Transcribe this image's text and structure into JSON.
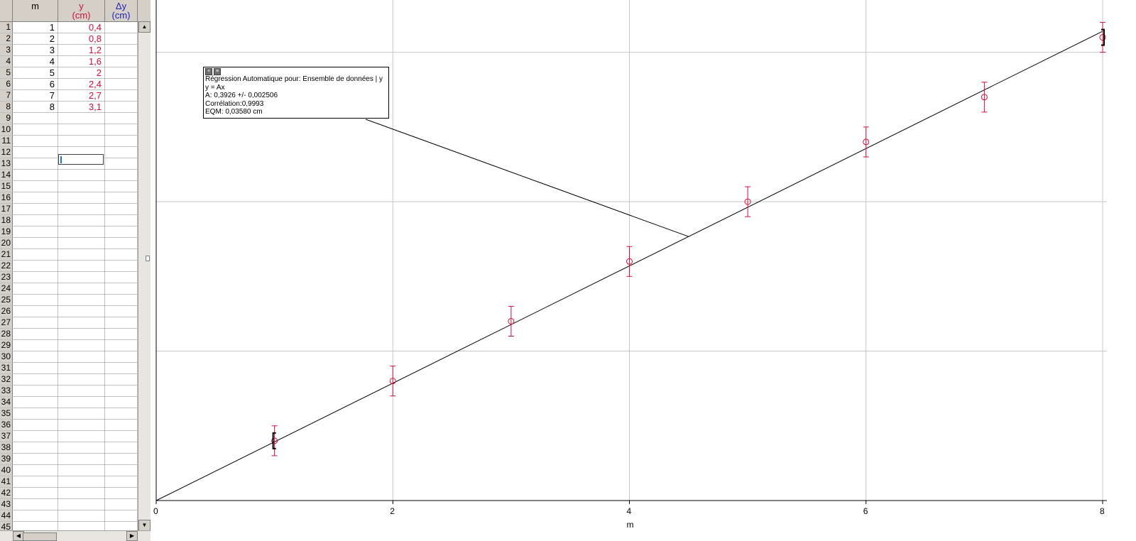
{
  "table": {
    "headers": {
      "m": {
        "name": "m",
        "unit": ""
      },
      "y": {
        "name": "y",
        "unit": "(cm)"
      },
      "dy": {
        "name": "Δy",
        "unit": "(cm)"
      }
    },
    "row_numbers": [
      "1",
      "2",
      "3",
      "4",
      "5",
      "6",
      "7",
      "8",
      "9",
      "10",
      "11",
      "12",
      "13",
      "14",
      "15",
      "16",
      "17",
      "18",
      "19",
      "20",
      "21",
      "22",
      "23",
      "24",
      "25",
      "26",
      "27",
      "28",
      "29",
      "30",
      "31",
      "32",
      "33",
      "34",
      "35",
      "36",
      "37",
      "38",
      "39",
      "40",
      "41",
      "42",
      "43",
      "44",
      "45"
    ],
    "rows": [
      {
        "m": "1",
        "y": "0,4"
      },
      {
        "m": "2",
        "y": "0,8"
      },
      {
        "m": "3",
        "y": "1,2"
      },
      {
        "m": "4",
        "y": "1,6"
      },
      {
        "m": "5",
        "y": "2"
      },
      {
        "m": "6",
        "y": "2,4"
      },
      {
        "m": "7",
        "y": "2,7"
      },
      {
        "m": "8",
        "y": "3,1"
      }
    ],
    "colors": {
      "m": "#000000",
      "y": "#d0103a",
      "dy": "#2020c0"
    }
  },
  "regression": {
    "title": "Régression Automatique pour: Ensemble de données | y",
    "model": "y = Ax",
    "param": "A: 0,3926 +/- 0,002506",
    "correlation": "Corrélation:0,9993",
    "rmse": "EQM: 0,03580 cm"
  },
  "chart_data": {
    "type": "scatter",
    "x": [
      1,
      2,
      3,
      4,
      5,
      6,
      7,
      8
    ],
    "y": [
      0.4,
      0.8,
      1.2,
      1.6,
      2.0,
      2.4,
      2.7,
      3.1
    ],
    "y_error": 0.1,
    "fit": {
      "slope": 0.3926,
      "intercept": 0
    },
    "xlabel": "m",
    "ylabel": "",
    "xlim": [
      0,
      8
    ],
    "ylim": [
      0,
      3.35
    ],
    "x_ticks": [
      "0",
      "2",
      "4",
      "6",
      "8"
    ],
    "x_tick_values": [
      0,
      2,
      4,
      6,
      8
    ],
    "y_gridlines": [
      0,
      1,
      2,
      3
    ],
    "grid": true,
    "point_color": "#d0103a",
    "fit_color": "#000000",
    "grid_color": "#c8c8c8"
  }
}
